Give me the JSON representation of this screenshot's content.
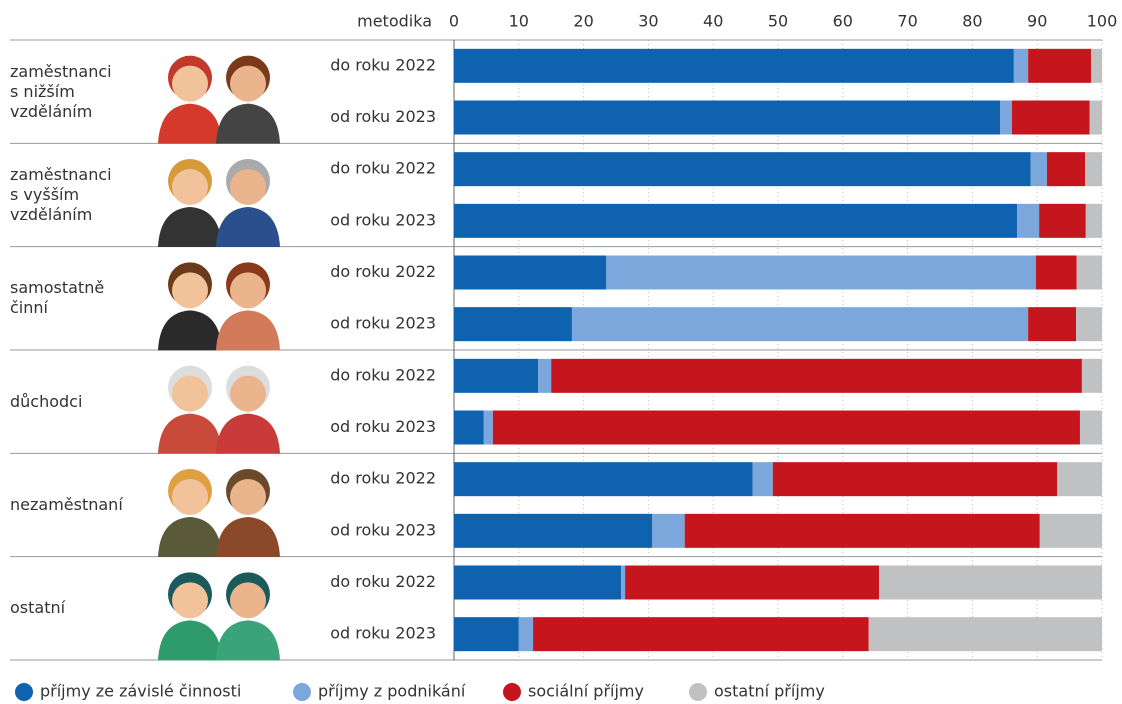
{
  "chart_data": {
    "type": "stacked-bar-horizontal",
    "category_header": "metodika",
    "groups": [
      "zaměstnanci\ns nižším\nvzděláním",
      "zaměstnanci\ns vyšším\nvzděláním",
      "samostatně\nčinní",
      "důchodci",
      "nezaměstnaní",
      "ostatní"
    ],
    "categories": [
      "do roku 2022",
      "od roku 2023",
      "do roku 2022",
      "od roku 2023",
      "do roku 2022",
      "od roku 2023",
      "do roku 2022",
      "od roku 2023",
      "do roku 2022",
      "od roku 2023",
      "do roku 2022",
      "od roku 2023"
    ],
    "series": [
      {
        "name": "příjmy ze závislé činnosti",
        "color": "#0f62ae",
        "values": [
          86.4,
          84.3,
          89.0,
          86.9,
          23.5,
          18.2,
          13.0,
          4.6,
          46.1,
          30.6,
          25.8,
          10.0
        ]
      },
      {
        "name": "příjmy z podnikání",
        "color": "#7ba7dc",
        "values": [
          2.2,
          1.8,
          2.5,
          3.4,
          66.3,
          70.4,
          2.0,
          1.4,
          3.1,
          5.0,
          0.6,
          2.2
        ]
      },
      {
        "name": "sociální příjmy",
        "color": "#c4161c",
        "values": [
          9.7,
          12.0,
          5.9,
          7.2,
          6.3,
          7.4,
          81.9,
          90.6,
          43.9,
          54.8,
          39.2,
          51.8
        ]
      },
      {
        "name": "ostatní příjmy",
        "color": "#c0c1c3",
        "values": [
          1.7,
          1.9,
          2.6,
          2.5,
          3.9,
          4.0,
          3.1,
          3.4,
          6.9,
          9.6,
          34.4,
          36.0
        ]
      }
    ],
    "xlim": [
      0,
      100
    ],
    "xticks": [
      0,
      10,
      20,
      30,
      40,
      50,
      60,
      70,
      80,
      90,
      100
    ],
    "grid": true
  }
}
